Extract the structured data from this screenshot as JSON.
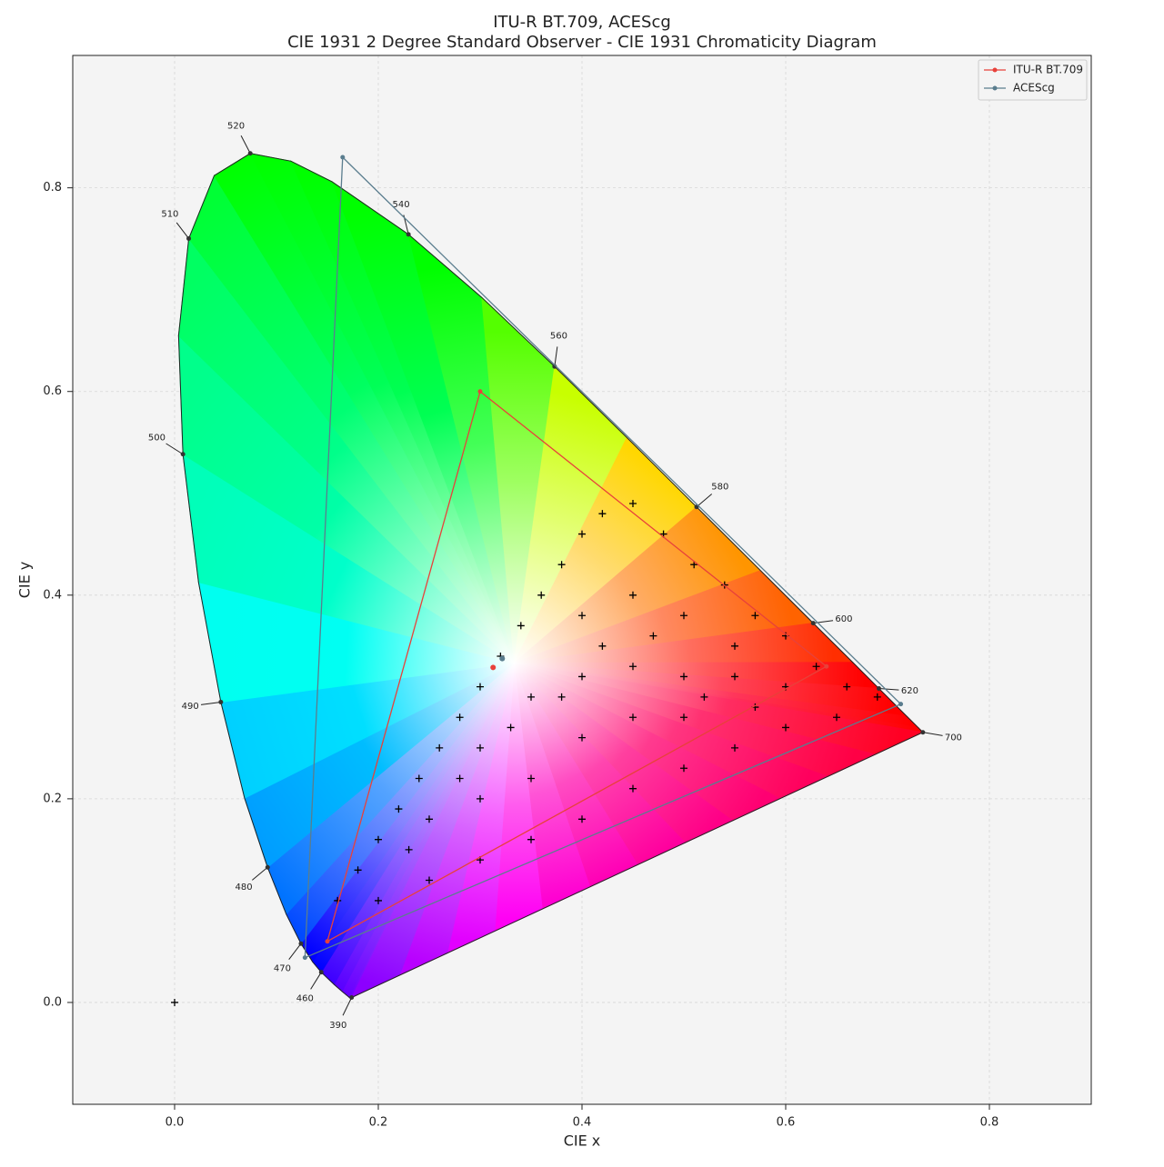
{
  "chart_data": {
    "type": "chromaticity",
    "title": "ITU-R BT.709, ACEScg",
    "subtitle": "CIE 1931 2 Degree Standard Observer - CIE 1931 Chromaticity Diagram",
    "x_label": "CIE x",
    "y_label": "CIE y",
    "xlim": [
      -0.1,
      0.9
    ],
    "ylim": [
      -0.1,
      0.93
    ],
    "xticks": [
      {
        "value": 0,
        "label": "0.0"
      },
      0.2,
      0.4,
      0.6,
      0.8
    ],
    "yticks": [
      {
        "value": 0,
        "label": "0.0"
      },
      0.2,
      0.4,
      0.6,
      0.8
    ],
    "grid": true,
    "legend": "upper right",
    "spectral_locus": {
      "x": [
        0.1741,
        0.1733,
        0.1714,
        0.1644,
        0.1566,
        0.144,
        0.1355,
        0.1241,
        0.1096,
        0.0913,
        0.0687,
        0.0454,
        0.0235,
        0.0082,
        0.0039,
        0.0139,
        0.0389,
        0.0743,
        0.1142,
        0.1547,
        0.2296,
        0.3016,
        0.3731,
        0.4441,
        0.5125,
        0.5752,
        0.627,
        0.6658,
        0.6915,
        0.719,
        0.73,
        0.7347
      ],
      "y": [
        0.005,
        0.0048,
        0.0051,
        0.0109,
        0.0177,
        0.0297,
        0.0399,
        0.0578,
        0.0868,
        0.1327,
        0.2007,
        0.295,
        0.4127,
        0.5384,
        0.6548,
        0.7502,
        0.812,
        0.8338,
        0.8262,
        0.8059,
        0.7543,
        0.6923,
        0.6245,
        0.5547,
        0.4866,
        0.4242,
        0.3725,
        0.334,
        0.3083,
        0.2809,
        0.27,
        0.2653
      ]
    },
    "wavelength_labels": {
      "labels": [
        390,
        460,
        470,
        480,
        490,
        500,
        510,
        520,
        540,
        560,
        580,
        600,
        620,
        700
      ],
      "x": [
        0.1738,
        0.144,
        0.1241,
        0.0913,
        0.0454,
        0.0082,
        0.0139,
        0.0743,
        0.2296,
        0.3731,
        0.5125,
        0.627,
        0.6915,
        0.7347
      ],
      "y": [
        0.0049,
        0.0297,
        0.0578,
        0.1327,
        0.295,
        0.5384,
        0.7502,
        0.8338,
        0.7543,
        0.6245,
        0.4866,
        0.3725,
        0.3083,
        0.2653
      ]
    },
    "series": [
      {
        "name": "ITU-R BT.709",
        "color": "#e8413a",
        "x": [
          0.64,
          0.3,
          0.15
        ],
        "y": [
          0.33,
          0.6,
          0.06
        ],
        "whitepoint": [
          0.3127,
          0.329
        ]
      },
      {
        "name": "ACEScg",
        "color": "#5a7d8e",
        "x": [
          0.713,
          0.165,
          0.128
        ],
        "y": [
          0.293,
          0.83,
          0.044
        ],
        "whitepoint": [
          0.32168,
          0.33767
        ]
      }
    ],
    "points": {
      "color": "#000000",
      "x": [
        0.16,
        0.18,
        0.2,
        0.22,
        0.24,
        0.26,
        0.28,
        0.3,
        0.32,
        0.34,
        0.36,
        0.38,
        0.4,
        0.42,
        0.45,
        0.48,
        0.51,
        0.54,
        0.57,
        0.6,
        0.63,
        0.66,
        0.69,
        0.2,
        0.25,
        0.3,
        0.35,
        0.4,
        0.45,
        0.5,
        0.55,
        0.6,
        0.65,
        0.3,
        0.35,
        0.4,
        0.45,
        0.5,
        0.55,
        0.6,
        0.25,
        0.3,
        0.35,
        0.4,
        0.45,
        0.5,
        0.4,
        0.45,
        0.5,
        0.55,
        0.38,
        0.33,
        0.28,
        0.23,
        0.42,
        0.47,
        0.52,
        0.57,
        0
      ],
      "y": [
        0.1,
        0.13,
        0.16,
        0.19,
        0.22,
        0.25,
        0.28,
        0.31,
        0.34,
        0.37,
        0.4,
        0.43,
        0.46,
        0.48,
        0.49,
        0.46,
        0.43,
        0.41,
        0.38,
        0.36,
        0.33,
        0.31,
        0.3,
        0.1,
        0.12,
        0.14,
        0.16,
        0.18,
        0.21,
        0.23,
        0.25,
        0.27,
        0.28,
        0.25,
        0.3,
        0.32,
        0.33,
        0.32,
        0.32,
        0.31,
        0.18,
        0.2,
        0.22,
        0.26,
        0.28,
        0.28,
        0.38,
        0.4,
        0.38,
        0.35,
        0.3,
        0.27,
        0.22,
        0.15,
        0.35,
        0.36,
        0.3,
        0.29,
        0
      ]
    }
  }
}
